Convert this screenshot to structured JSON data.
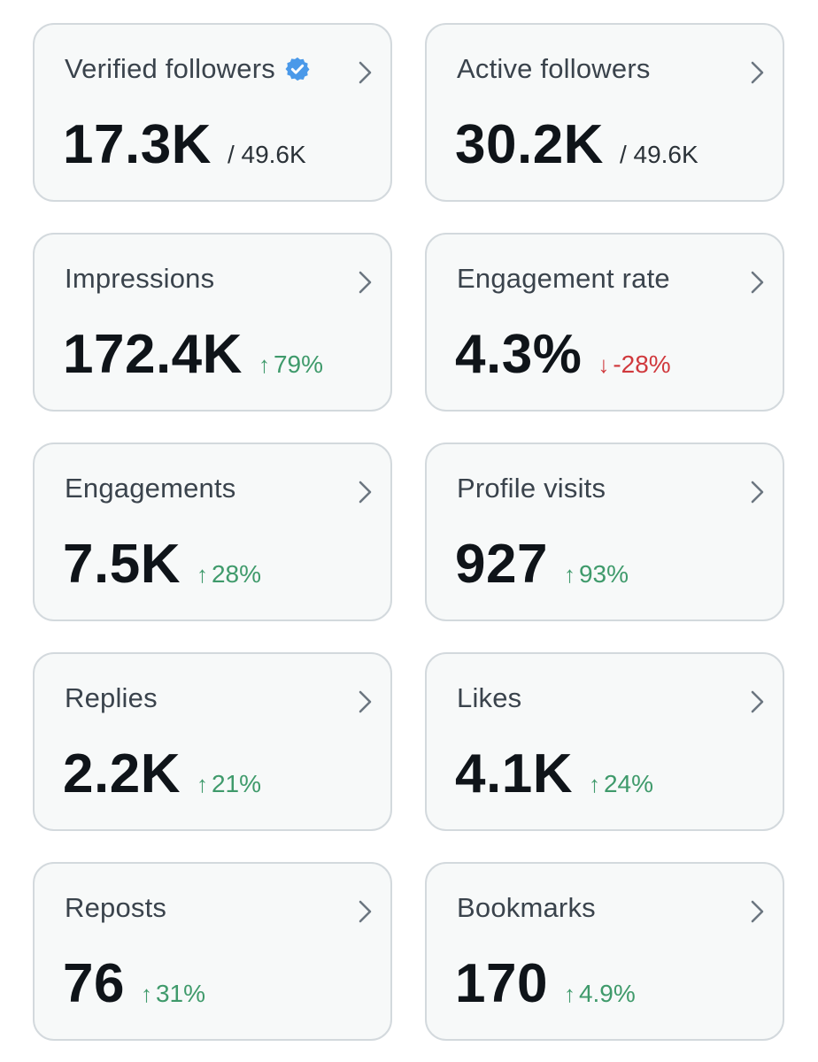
{
  "cards": [
    {
      "label": "Verified followers",
      "value": "17.3K",
      "sub": "/ 49.6K",
      "verified_icon": "verified-badge-icon"
    },
    {
      "label": "Active followers",
      "value": "30.2K",
      "sub": "/ 49.6K"
    },
    {
      "label": "Impressions",
      "value": "172.4K",
      "change": "79%",
      "direction": "up"
    },
    {
      "label": "Engagement rate",
      "value": "4.3%",
      "change": "-28%",
      "direction": "down"
    },
    {
      "label": "Engagements",
      "value": "7.5K",
      "change": "28%",
      "direction": "up"
    },
    {
      "label": "Profile visits",
      "value": "927",
      "change": "93%",
      "direction": "up"
    },
    {
      "label": "Replies",
      "value": "2.2K",
      "change": "21%",
      "direction": "up"
    },
    {
      "label": "Likes",
      "value": "4.1K",
      "change": "24%",
      "direction": "up"
    },
    {
      "label": "Reposts",
      "value": "76",
      "change": "31%",
      "direction": "up"
    },
    {
      "label": "Bookmarks",
      "value": "170",
      "change": "4.9%",
      "direction": "up"
    }
  ],
  "colors": {
    "card_bg": "#f7f9f9",
    "card_border": "#d3d9dd",
    "up": "#3f9a6b",
    "down": "#d0393d",
    "verified": "#4a99e9"
  },
  "icons": {
    "arrow_up": "↑",
    "arrow_down": "↓"
  }
}
